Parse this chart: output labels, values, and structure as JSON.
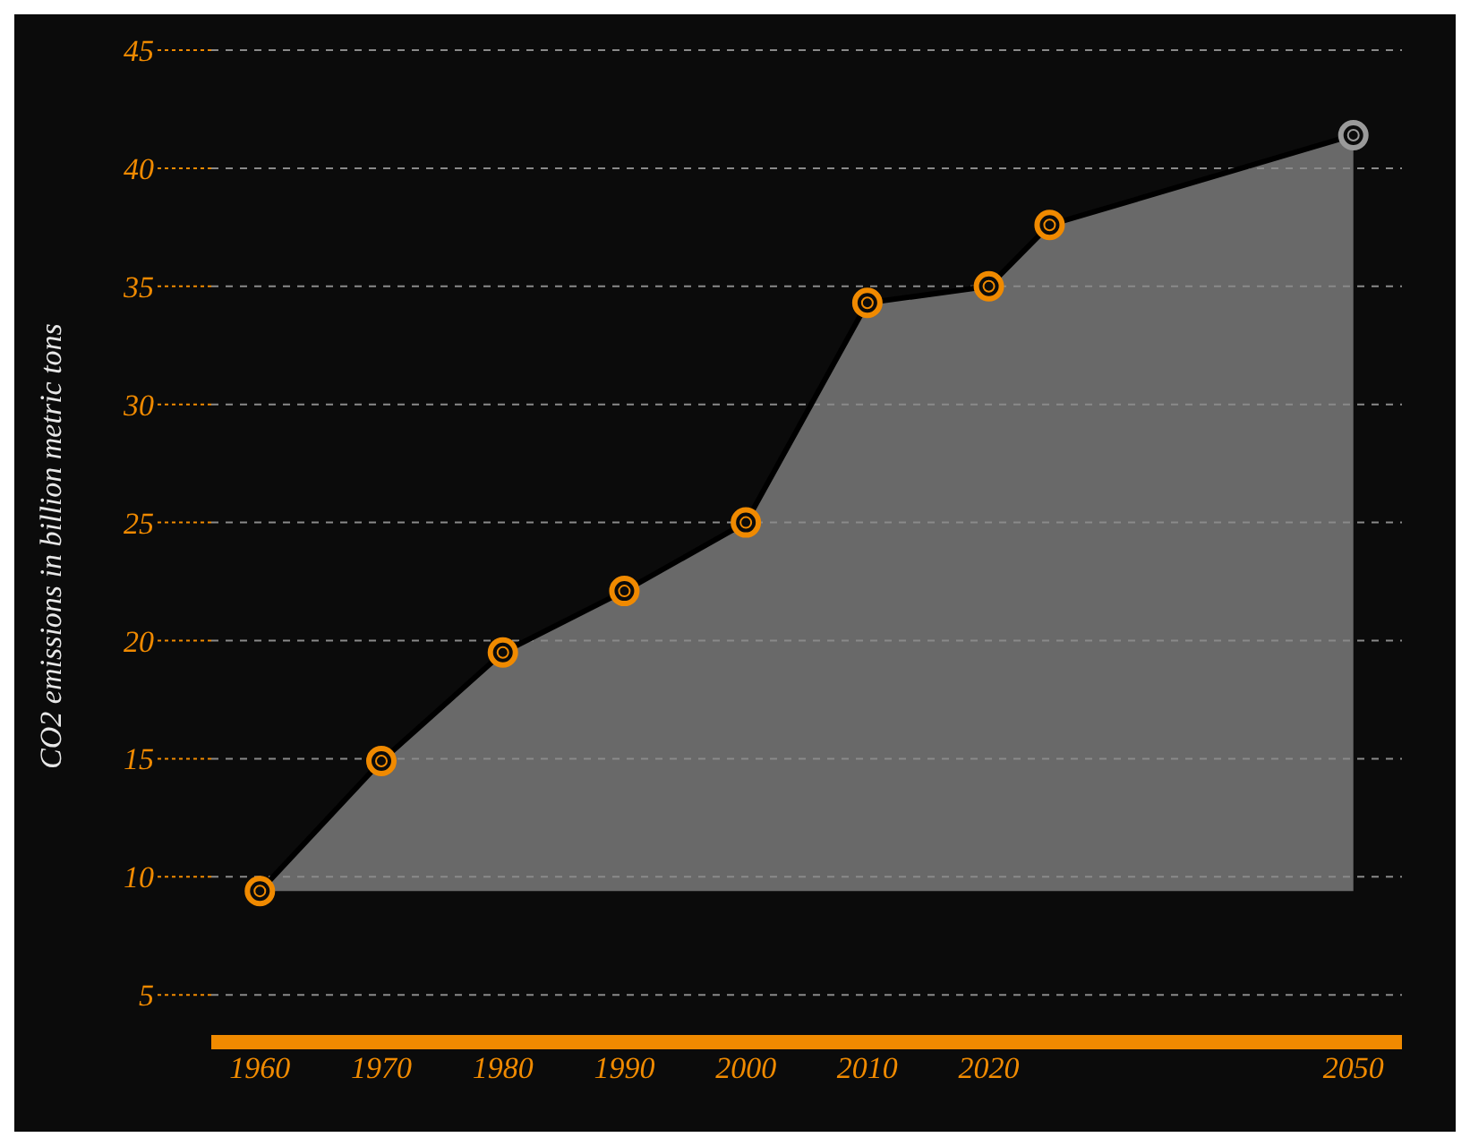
{
  "chart_data": {
    "type": "area",
    "ylabel": "CO2 emissions in billion metric tons",
    "x": [
      1960,
      1970,
      1980,
      1990,
      2000,
      2010,
      2020,
      2025,
      2050
    ],
    "values": [
      9.4,
      14.9,
      19.5,
      22.1,
      25.0,
      34.3,
      35.0,
      37.6,
      41.4
    ],
    "color": "#8a8a8a",
    "colors": [
      "#f08a00",
      "#f08a00",
      "#f08a00",
      "#f08a00",
      "#f08a00",
      "#f08a00",
      "#f08a00",
      "#f08a00",
      "#9a9a9a"
    ],
    "marker": "circle",
    "xlim": [
      1956,
      2054
    ],
    "xticks": [
      1960,
      1970,
      1980,
      1990,
      2000,
      2010,
      2020,
      2050
    ],
    "ylim": [
      3,
      45
    ],
    "yticks": [
      5,
      10,
      15,
      20,
      25,
      30,
      35,
      40,
      45
    ],
    "grid": "y"
  }
}
